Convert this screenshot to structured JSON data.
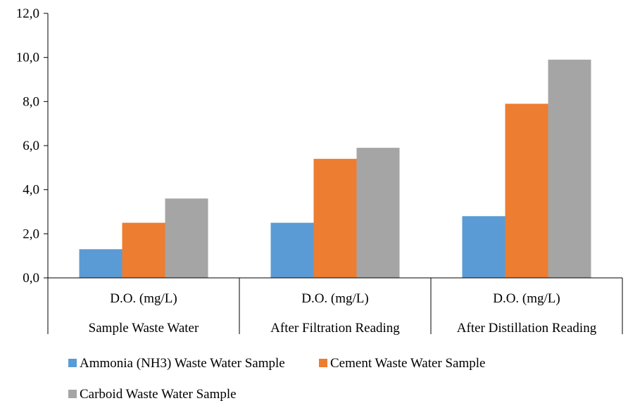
{
  "chart_data": {
    "type": "bar",
    "title": "",
    "xlabel": "",
    "ylabel": "",
    "ylim": [
      0,
      12
    ],
    "ytick_labels": [
      "0,0",
      "2,0",
      "4,0",
      "6,0",
      "8,0",
      "10,0",
      "12,0"
    ],
    "categories": [
      {
        "line1": "D.O. (mg/L)",
        "line2": "Sample Waste Water"
      },
      {
        "line1": "D.O. (mg/L)",
        "line2": "After Filtration Reading"
      },
      {
        "line1": "D.O. (mg/L)",
        "line2": "After Distillation Reading"
      }
    ],
    "series": [
      {
        "name": "Ammonia (NH3) Waste Water Sample",
        "color": "#5b9bd5",
        "values": [
          1.3,
          2.5,
          2.8
        ]
      },
      {
        "name": "Cement Waste Water Sample",
        "color": "#ed7d31",
        "values": [
          2.5,
          5.4,
          7.9
        ]
      },
      {
        "name": "Carboid Waste Water Sample",
        "color": "#a5a5a5",
        "values": [
          3.6,
          5.9,
          9.9
        ]
      }
    ],
    "grid": false,
    "legend_position": "bottom"
  }
}
